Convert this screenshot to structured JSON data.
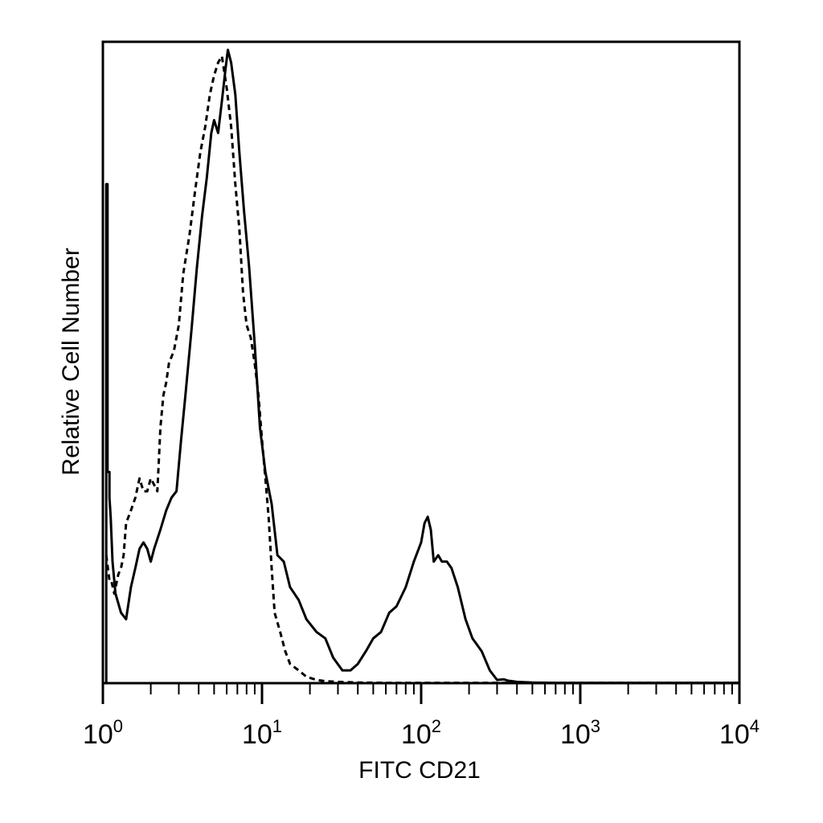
{
  "chart_data": {
    "type": "line",
    "title": "",
    "xlabel": "FITC CD21",
    "ylabel": "Relative Cell Number",
    "x_scale": "log",
    "xlim": [
      1,
      10000
    ],
    "ylim": [
      0,
      100
    ],
    "grid": false,
    "legend": "none",
    "x_ticks": [
      {
        "value": 1,
        "base": "10",
        "exp": "0"
      },
      {
        "value": 10,
        "base": "10",
        "exp": "1"
      },
      {
        "value": 100,
        "base": "10",
        "exp": "2"
      },
      {
        "value": 1000,
        "base": "10",
        "exp": "3"
      },
      {
        "value": 10000,
        "base": "10",
        "exp": "4"
      }
    ],
    "series": [
      {
        "style": "solid",
        "color": "#000000",
        "x": [
          1.05,
          1.05,
          1.07,
          1.07,
          1.1,
          1.1,
          1.12,
          1.15,
          1.2,
          1.3,
          1.4,
          1.5,
          1.6,
          1.7,
          1.8,
          1.9,
          2.0,
          2.1,
          2.3,
          2.5,
          2.7,
          2.9,
          3.1,
          3.3,
          3.6,
          3.9,
          4.2,
          4.5,
          4.8,
          5.0,
          5.3,
          5.6,
          5.9,
          6.1,
          6.4,
          6.8,
          7.2,
          7.7,
          8.3,
          9.0,
          9.7,
          10.5,
          11.5,
          12.5,
          13.7,
          15,
          17,
          19,
          22,
          25,
          28,
          32,
          36,
          40,
          45,
          50,
          56,
          63,
          70,
          80,
          90,
          100,
          105,
          110,
          115,
          120,
          128,
          135,
          145,
          155,
          170,
          190,
          210,
          240,
          270,
          300,
          330,
          350,
          400,
          500,
          700,
          1000,
          2000,
          5000,
          10000
        ],
        "y": [
          0,
          78,
          78,
          33,
          33,
          29,
          26,
          19,
          14,
          11,
          10,
          15,
          18,
          21,
          22,
          21,
          19,
          21,
          24,
          27,
          29,
          30,
          38,
          45,
          55,
          65,
          73,
          79,
          86,
          88,
          86,
          91,
          96,
          99,
          97,
          92,
          83,
          74,
          65,
          53,
          40,
          33,
          28,
          20,
          19,
          15,
          13,
          10,
          8,
          7,
          4,
          2,
          2,
          3,
          5,
          7,
          8,
          11,
          12,
          15,
          19,
          22,
          25,
          26,
          24,
          19,
          20,
          19,
          19,
          18,
          15,
          10,
          7,
          5,
          2,
          0.5,
          0.6,
          0.4,
          0.2,
          0.1,
          0.05,
          0.05,
          0.05,
          0.05,
          0.05
        ]
      },
      {
        "style": "dashed",
        "color": "#000000",
        "x": [
          1.05,
          1.1,
          1.13,
          1.18,
          1.25,
          1.3,
          1.35,
          1.4,
          1.5,
          1.6,
          1.7,
          1.8,
          1.9,
          2.0,
          2.1,
          2.2,
          2.3,
          2.4,
          2.5,
          2.6,
          2.8,
          3.0,
          3.2,
          3.5,
          3.8,
          4.1,
          4.4,
          4.7,
          5.0,
          5.3,
          5.6,
          6.0,
          6.4,
          6.8,
          7.2,
          7.6,
          8.0,
          8.5,
          9.0,
          9.5,
          10.0,
          10.5,
          11,
          11.5,
          12,
          13,
          14,
          15,
          17,
          19,
          22,
          25,
          30,
          40,
          60,
          100,
          300,
          1000,
          10000
        ],
        "y": [
          20,
          16,
          16,
          14,
          17,
          18,
          20,
          25,
          27,
          29,
          32,
          30,
          30,
          32,
          31,
          30,
          40,
          45,
          47,
          50,
          52,
          56,
          64,
          70,
          77,
          83,
          87,
          92,
          95,
          97,
          98,
          93,
          87,
          78,
          71,
          61,
          56,
          54,
          50,
          45,
          38,
          32,
          26,
          18,
          11,
          8,
          5,
          3,
          2,
          1,
          0.5,
          0.3,
          0.2,
          0.1,
          0.05,
          0.05,
          0.05,
          0.05,
          0.05
        ]
      }
    ]
  }
}
